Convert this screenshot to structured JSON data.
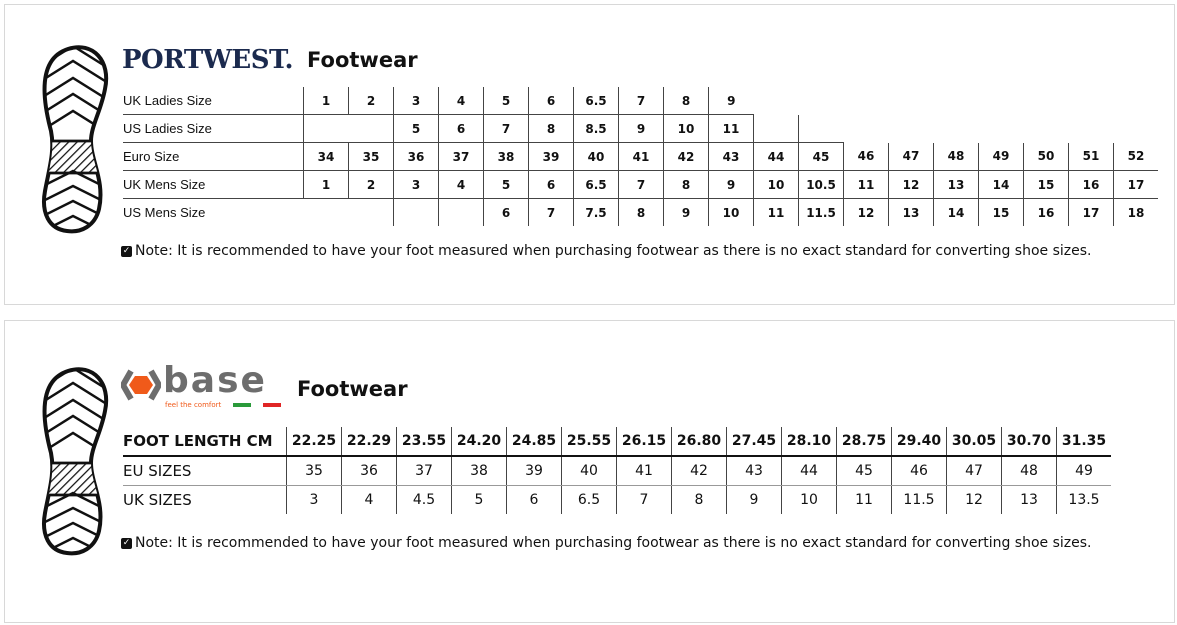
{
  "portwest": {
    "logo": "PORTWEST.",
    "title": "Footwear",
    "rows": [
      {
        "label": "UK Ladies Size",
        "values": [
          "1",
          "2",
          "3",
          "4",
          "5",
          "6",
          "6.5",
          "7",
          "8",
          "9"
        ]
      },
      {
        "label": "US Ladies Size",
        "values": [
          "",
          "",
          "5",
          "6",
          "7",
          "8",
          "8.5",
          "9",
          "10",
          "11",
          "",
          ""
        ]
      },
      {
        "label": "Euro Size",
        "values": [
          "34",
          "35",
          "36",
          "37",
          "38",
          "39",
          "40",
          "41",
          "42",
          "43",
          "44",
          "45",
          "46",
          "47",
          "48",
          "49",
          "50",
          "51",
          "52"
        ]
      },
      {
        "label": "UK Mens Size",
        "values": [
          "1",
          "2",
          "3",
          "4",
          "5",
          "6",
          "6.5",
          "7",
          "8",
          "9",
          "10",
          "10.5",
          "11",
          "12",
          "13",
          "14",
          "15",
          "16",
          "17"
        ]
      },
      {
        "label": "US Mens Size",
        "values": [
          "",
          "",
          "",
          "",
          "6",
          "7",
          "7.5",
          "8",
          "9",
          "10",
          "11",
          "11.5",
          "12",
          "13",
          "14",
          "15",
          "16",
          "17",
          "18"
        ]
      }
    ],
    "note": "Note: It is recommended to have your foot measured when purchasing footwear as there is no exact standard for converting shoe sizes."
  },
  "base": {
    "logo": "Base",
    "tagline": "feel the comfort",
    "title": "Footwear",
    "rows": [
      {
        "label": "FOOT LENGTH CM",
        "values": [
          "22.25",
          "22.29",
          "23.55",
          "24.20",
          "24.85",
          "25.55",
          "26.15",
          "26.80",
          "27.45",
          "28.10",
          "28.75",
          "29.40",
          "30.05",
          "30.70",
          "31.35"
        ]
      },
      {
        "label": "EU SIZES",
        "values": [
          "35",
          "36",
          "37",
          "38",
          "39",
          "40",
          "41",
          "42",
          "43",
          "44",
          "45",
          "46",
          "47",
          "48",
          "49"
        ]
      },
      {
        "label": "UK SIZES",
        "values": [
          "3",
          "4",
          "4.5",
          "5",
          "6",
          "6.5",
          "7",
          "8",
          "9",
          "10",
          "11",
          "11.5",
          "12",
          "13",
          "13.5"
        ]
      }
    ],
    "note": "Note: It is recommended to have your foot measured when purchasing footwear as there is no exact standard for converting shoe sizes."
  },
  "colors": {
    "portwest_navy": "#1b2a4e",
    "base_orange": "#f05a1a",
    "base_grey": "#6d6d6d"
  }
}
